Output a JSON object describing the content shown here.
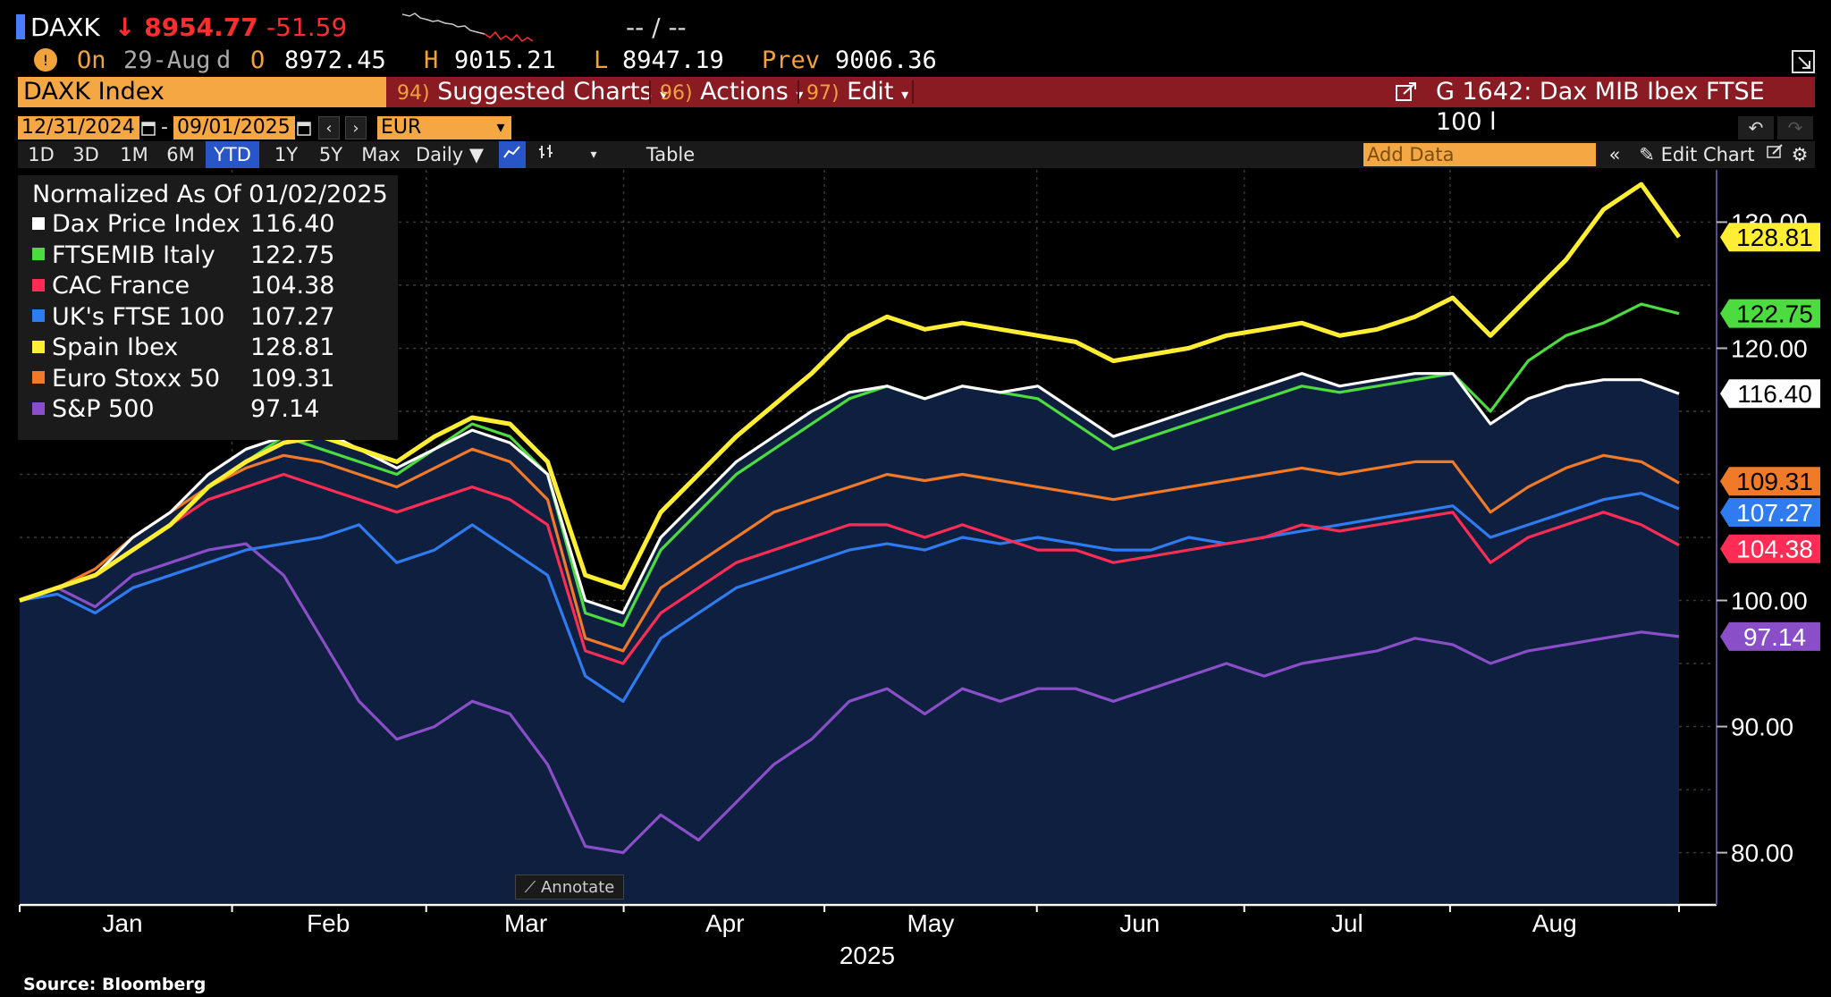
{
  "quote": {
    "symbol": "DAXK",
    "arrow": "↓",
    "last": "8954.77",
    "change": "-51.59",
    "placeholder": "-- / --",
    "row2_on": "On",
    "date": "29-Aug",
    "d": "d",
    "open_label": "O",
    "open": "8972.45",
    "high_label": "H",
    "high": "9015.21",
    "low_label": "L",
    "low": "8947.19",
    "prev_label": "Prev",
    "prev": "9006.36"
  },
  "menubar": {
    "security": "DAXK Index",
    "items": [
      {
        "num": "94)",
        "label": "Suggested Charts",
        "caret": "▾"
      },
      {
        "num": "96)",
        "label": "Actions",
        "caret": "▾"
      },
      {
        "num": "97)",
        "label": "Edit",
        "caret": "▾"
      }
    ],
    "chart_title": "G 1642: Dax MIB Ibex FTSE 100 l"
  },
  "dates": {
    "start": "12/31/2024",
    "dash": "-",
    "end": "09/01/2025",
    "currency": "EUR"
  },
  "toolbar": {
    "ranges": [
      "1D",
      "3D",
      "1M",
      "6M",
      "YTD",
      "1Y",
      "5Y",
      "Max"
    ],
    "active_range": "YTD",
    "frequency": "Daily ▼",
    "table": "Table",
    "add_data_placeholder": "Add Data",
    "edit_chart": "Edit Chart"
  },
  "legend": {
    "title": "Normalized As Of 01/02/2025"
  },
  "annotate": "Annotate",
  "source": "Source: Bloomberg",
  "chart_data": {
    "type": "line",
    "title": "",
    "xlabel": "2025",
    "ylabel": "",
    "x_tick_labels": [
      "Jan",
      "Feb",
      "Mar",
      "Apr",
      "May",
      "Jun",
      "Jul",
      "Aug"
    ],
    "y_tick_labels": [
      "80.00",
      "90.00",
      "100.00",
      "120.00",
      "130.00"
    ],
    "ylim": [
      76,
      134
    ],
    "grid": true,
    "legend_position": "top-left",
    "series": [
      {
        "name": "S&P 500",
        "color": "#8a4fc8",
        "last": "97.14",
        "values": [
          100,
          101,
          99.5,
          102,
          103,
          104,
          104.5,
          102,
          97,
          92,
          89,
          90,
          92,
          91,
          87,
          80.5,
          80,
          83,
          81,
          84,
          87,
          89,
          92,
          93,
          91,
          93,
          92,
          93,
          93,
          92,
          93,
          94,
          95,
          94,
          95,
          95.5,
          96,
          97,
          96.5,
          95,
          96,
          96.5,
          97,
          97.5,
          97.14
        ]
      },
      {
        "name": "UK's FTSE 100",
        "color": "#2f7bf0",
        "last": "107.27",
        "values": [
          100,
          100.5,
          99,
          101,
          102,
          103,
          104,
          104.5,
          105,
          106,
          103,
          104,
          106,
          104,
          102,
          94,
          92,
          97,
          99,
          101,
          102,
          103,
          104,
          104.5,
          104,
          105,
          104.5,
          105,
          104.5,
          104,
          104,
          105,
          104.5,
          105,
          105.5,
          106,
          106.5,
          107,
          107.5,
          105,
          106,
          107,
          108,
          108.5,
          107.27
        ]
      },
      {
        "name": "CAC France",
        "color": "#ff2d55",
        "last": "104.38",
        "values": [
          100,
          101,
          102,
          104,
          106,
          108,
          109,
          110,
          109,
          108,
          107,
          108,
          109,
          108,
          106,
          96,
          95,
          99,
          101,
          103,
          104,
          105,
          106,
          106,
          105,
          106,
          105,
          104,
          104,
          103,
          103.5,
          104,
          104.5,
          105,
          106,
          105.5,
          106,
          106.5,
          107,
          103,
          105,
          106,
          107,
          106,
          104.38
        ]
      },
      {
        "name": "Euro Stoxx 50",
        "color": "#f07a28",
        "last": "109.31",
        "values": [
          100,
          101,
          102.5,
          105,
          107,
          109,
          110.5,
          111.5,
          111,
          110,
          109,
          110.5,
          112,
          111,
          108,
          97,
          96,
          101,
          103,
          105,
          107,
          108,
          109,
          110,
          109.5,
          110,
          109.5,
          109,
          108.5,
          108,
          108.5,
          109,
          109.5,
          110,
          110.5,
          110,
          110.5,
          111,
          111,
          107,
          109,
          110.5,
          111.5,
          111,
          109.31
        ]
      },
      {
        "name": "FTSEMIB Italy",
        "color": "#4ddc3f",
        "last": "122.75",
        "values": [
          100,
          101,
          102,
          104,
          106,
          109,
          111,
          113,
          112,
          111,
          110,
          112,
          114,
          113,
          110,
          99,
          98,
          104,
          107,
          110,
          112,
          114,
          116,
          117,
          116,
          117,
          116.5,
          116,
          114,
          112,
          113,
          114,
          115,
          116,
          117,
          116.5,
          117,
          117.5,
          118,
          115,
          119,
          121,
          122,
          123.5,
          122.75
        ]
      },
      {
        "name": "Dax Price Index",
        "color": "#ffffff",
        "last": "116.40",
        "values": [
          100,
          101,
          102,
          105,
          107,
          110,
          112,
          113,
          113.5,
          112,
          110.5,
          112,
          113.5,
          112.5,
          110,
          100,
          99,
          105,
          108,
          111,
          113,
          115,
          116.5,
          117,
          116,
          117,
          116.5,
          117,
          115,
          113,
          114,
          115,
          116,
          117,
          118,
          117,
          117.5,
          118,
          118,
          114,
          116,
          117,
          117.5,
          117.5,
          116.4
        ]
      },
      {
        "name": "Spain Ibex",
        "color": "#ffee33",
        "last": "128.81",
        "values": [
          100,
          101,
          102,
          104,
          106,
          109,
          111,
          112.5,
          113,
          112,
          111,
          113,
          114.5,
          114,
          111,
          102,
          101,
          107,
          110,
          113,
          115.5,
          118,
          121,
          122.5,
          121.5,
          122,
          121.5,
          121,
          120.5,
          119,
          119.5,
          120,
          121,
          121.5,
          122,
          121,
          121.5,
          122.5,
          124,
          121,
          124,
          127,
          131,
          133,
          128.81
        ]
      }
    ]
  }
}
